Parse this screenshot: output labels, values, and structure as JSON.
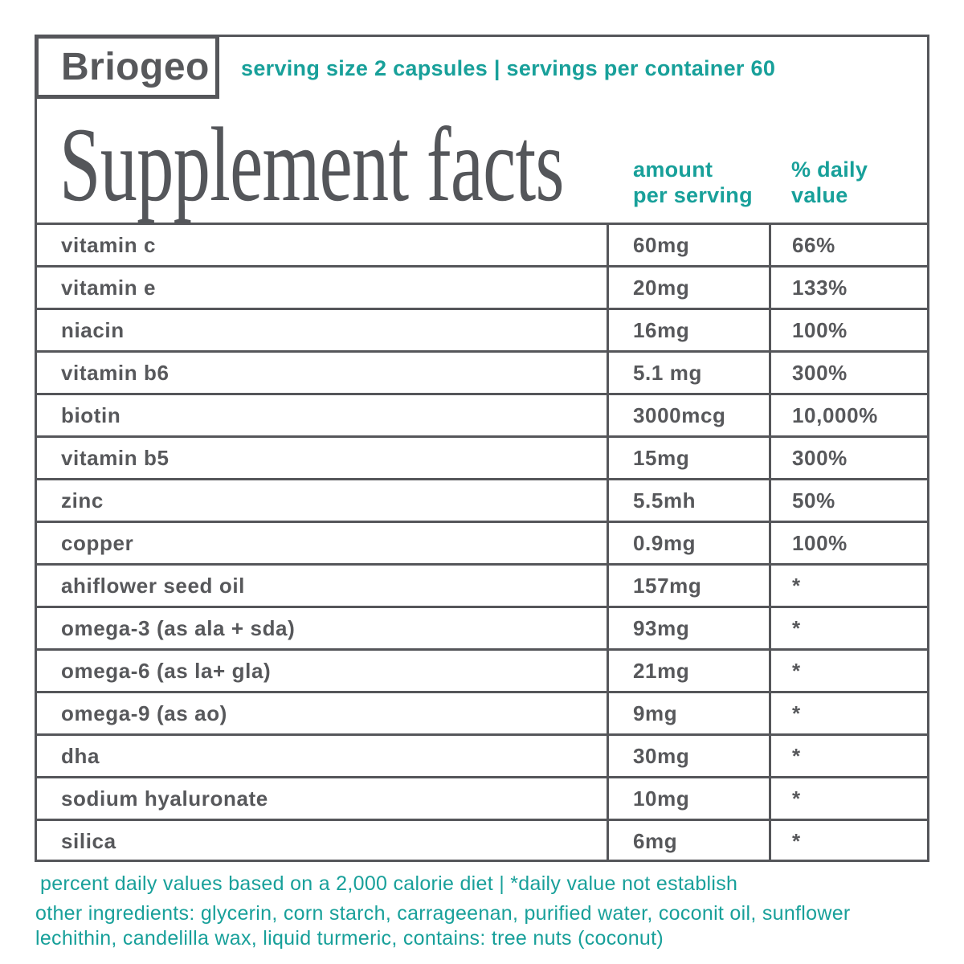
{
  "brand": {
    "name": "Briogeo"
  },
  "header": {
    "serving_info": "serving size 2 capsules | servings per container 60"
  },
  "title": "Supplement facts",
  "table": {
    "columns": {
      "amount": "amount\nper serving",
      "daily_value": "% daily\nvalue"
    },
    "rows": [
      {
        "name": "vitamin c",
        "amount": "60mg",
        "daily_value": "66%"
      },
      {
        "name": "vitamin e",
        "amount": "20mg",
        "daily_value": "133%"
      },
      {
        "name": "niacin",
        "amount": "16mg",
        "daily_value": "100%"
      },
      {
        "name": "vitamin b6",
        "amount": "5.1 mg",
        "daily_value": "300%"
      },
      {
        "name": "biotin",
        "amount": "3000mcg",
        "daily_value": "10,000%"
      },
      {
        "name": "vitamin b5",
        "amount": "15mg",
        "daily_value": "300%"
      },
      {
        "name": "zinc",
        "amount": "5.5mh",
        "daily_value": "50%"
      },
      {
        "name": "copper",
        "amount": "0.9mg",
        "daily_value": "100%"
      },
      {
        "name": "ahiflower seed oil",
        "amount": "157mg",
        "daily_value": "*"
      },
      {
        "name": "omega-3 (as ala + sda)",
        "amount": "93mg",
        "daily_value": "*"
      },
      {
        "name": "omega-6 (as la+ gla)",
        "amount": "21mg",
        "daily_value": "*"
      },
      {
        "name": "omega-9 (as ao)",
        "amount": "9mg",
        "daily_value": "*"
      },
      {
        "name": "dha",
        "amount": "30mg",
        "daily_value": "*"
      },
      {
        "name": "sodium hyaluronate",
        "amount": "10mg",
        "daily_value": "*"
      },
      {
        "name": "silica",
        "amount": "6mg",
        "daily_value": "*"
      }
    ]
  },
  "footnotes": {
    "daily_value_note": "percent daily values based on a 2,000 calorie diet | *daily value not establish",
    "other_ingredients": "other ingredients: glycerin, corn starch, carrageenan, purified water, coconit oil, sunflower lechithin, candelilla wax, liquid turmeric, contains: tree nuts (coconut)"
  },
  "colors": {
    "teal": "#18A09A",
    "dark_gray": "#57585B",
    "border": "#55565A"
  }
}
